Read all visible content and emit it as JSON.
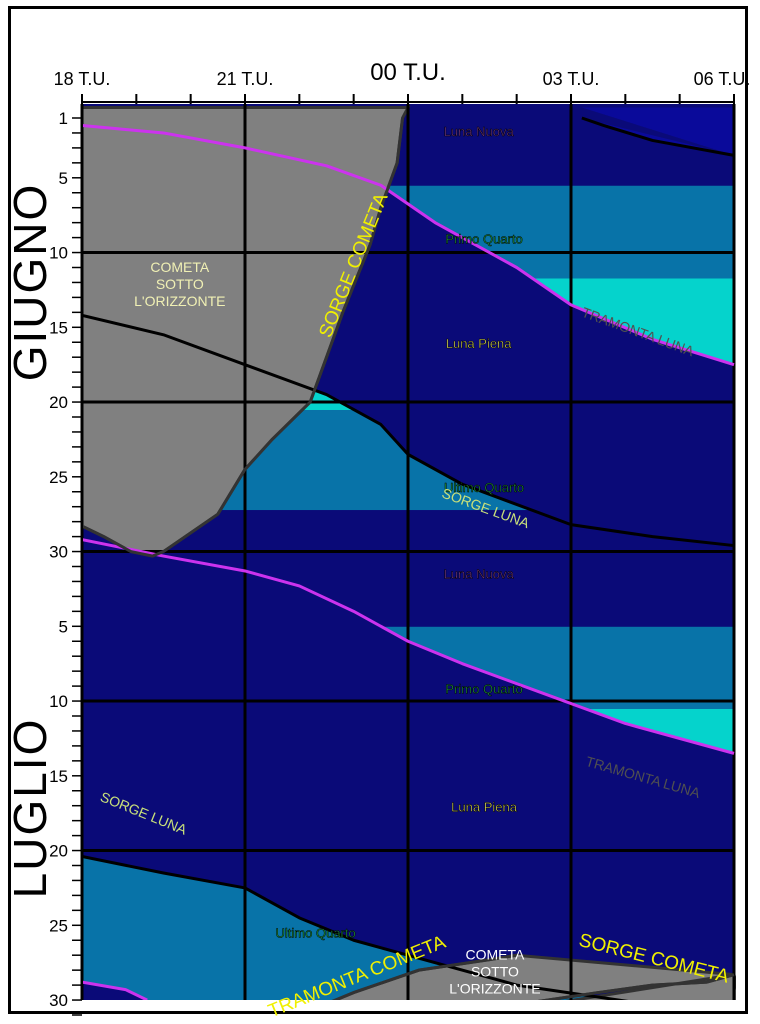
{
  "chart_data": {
    "type": "area",
    "title": "",
    "x_axis": {
      "position": "top",
      "ticks": [
        {
          "value": 18,
          "label": "18 T.U."
        },
        {
          "value": 21,
          "label": "21 T.U."
        },
        {
          "value": 24,
          "label": "00 T.U."
        },
        {
          "value": 27,
          "label": "03 T.U."
        },
        {
          "value": 30,
          "label": "06 T.U."
        }
      ],
      "range": [
        18,
        30
      ]
    },
    "y_axis": {
      "range_days": [
        1,
        61
      ],
      "ticks": [
        {
          "day": 1,
          "label": "1"
        },
        {
          "day": 5,
          "label": "5"
        },
        {
          "day": 10,
          "label": "10"
        },
        {
          "day": 15,
          "label": "15"
        },
        {
          "day": 20,
          "label": "20"
        },
        {
          "day": 25,
          "label": "25"
        },
        {
          "day": 30,
          "label": "30"
        },
        {
          "day": 35,
          "label": "5"
        },
        {
          "day": 40,
          "label": "10"
        },
        {
          "day": 45,
          "label": "15"
        },
        {
          "day": 50,
          "label": "20"
        },
        {
          "day": 55,
          "label": "25"
        },
        {
          "day": 60,
          "label": "30"
        }
      ]
    },
    "months": [
      {
        "label": "GIUGNO",
        "from_day": 1,
        "to_day": 30
      },
      {
        "label": "LUGLIO",
        "from_day": 31,
        "to_day": 61
      }
    ],
    "moon_phase_bands": [
      {
        "label": "Luna Nuova",
        "from_day": 1,
        "to_day": 6,
        "color": "#0a0a78"
      },
      {
        "label": "Primo Quarto",
        "from_day": 6,
        "to_day": 12.2,
        "color": "#0873a8"
      },
      {
        "label": "Luna Piena",
        "from_day": 12.2,
        "to_day": 21,
        "color": "#05d3cc"
      },
      {
        "label": "Ultimo Quarto",
        "from_day": 21,
        "to_day": 27.7,
        "color": "#0873a8"
      },
      {
        "label": "Luna Nuova",
        "from_day": 27.7,
        "to_day": 35.5,
        "color": "#0a0a78"
      },
      {
        "label": "Primo Quarto",
        "from_day": 35.5,
        "to_day": 41,
        "color": "#0873a8"
      },
      {
        "label": "Luna Piena",
        "from_day": 41,
        "to_day": 51,
        "color": "#05d3cc"
      },
      {
        "label": "Ultimo Quarto",
        "from_day": 51,
        "to_day": 61,
        "color": "#0873a8"
      }
    ],
    "phase_labels": [
      {
        "text": "Luna Nuova",
        "hour": 25.3,
        "day": 2.2,
        "color": "#7a3c8c"
      },
      {
        "text": "Primo Quarto",
        "hour": 25.4,
        "day": 9.4,
        "color": "#1f9e3c"
      },
      {
        "text": "Luna Piena",
        "hour": 25.3,
        "day": 16.4,
        "color": "#ecec5a"
      },
      {
        "text": "Ultimo Quarto",
        "hour": 25.4,
        "day": 26,
        "color": "#1f9e3c"
      },
      {
        "text": "Luna Nuova",
        "hour": 25.3,
        "day": 31.8,
        "color": "#7a3c8c"
      },
      {
        "text": "Primo Quarto",
        "hour": 25.4,
        "day": 39.5,
        "color": "#1f9e3c"
      },
      {
        "text": "Luna Piena",
        "hour": 25.4,
        "day": 47.4,
        "color": "#ecec5a"
      },
      {
        "text": "Ultimo Quarto",
        "hour": 22.3,
        "day": 55.8,
        "color": "#1f9e3c"
      }
    ],
    "moon_region_color": "#0a0a78",
    "comet_below_horizon_color": "#808080",
    "series": [
      {
        "name": "SORGE LUNA",
        "color": "#000000",
        "segments": [
          [
            [
              30,
              3.5
            ],
            [
              28.5,
              2.5
            ],
            [
              27.6,
              1.5
            ],
            [
              27.2,
              1
            ]
          ],
          [
            [
              18,
              14.2
            ],
            [
              19.5,
              15.5
            ],
            [
              21,
              17.5
            ],
            [
              22.5,
              19.5
            ],
            [
              23.5,
              21.5
            ],
            [
              24,
              23.5
            ],
            [
              25,
              25.5
            ],
            [
              27,
              28.2
            ],
            [
              28.5,
              29
            ],
            [
              30,
              29.6
            ]
          ],
          [
            [
              18,
              50.4
            ],
            [
              19.5,
              51.5
            ],
            [
              21,
              52.5
            ],
            [
              22,
              54.5
            ],
            [
              23,
              56
            ],
            [
              24.5,
              57.5
            ],
            [
              26,
              59
            ],
            [
              29,
              60.6
            ]
          ]
        ]
      },
      {
        "name": "TRAMONTA LUNA",
        "color": "#cc33ee",
        "segments": [
          [
            [
              18,
              1.5
            ],
            [
              19.5,
              2
            ],
            [
              21,
              3
            ],
            [
              22.5,
              4.2
            ],
            [
              23.5,
              5.5
            ],
            [
              24.5,
              8
            ],
            [
              26,
              11
            ],
            [
              27,
              13.5
            ],
            [
              28.5,
              15.8
            ],
            [
              30,
              17.5
            ]
          ],
          [
            [
              18,
              29.2
            ],
            [
              19.5,
              30.3
            ],
            [
              21,
              31.3
            ],
            [
              22,
              32.3
            ],
            [
              23,
              34
            ],
            [
              24,
              36
            ],
            [
              25,
              37.5
            ],
            [
              26.5,
              39.5
            ],
            [
              28,
              41.5
            ],
            [
              30,
              43.5
            ]
          ],
          [
            [
              18,
              58.8
            ],
            [
              18.8,
              59.3
            ],
            [
              19.2,
              60
            ]
          ]
        ]
      },
      {
        "name": "SORGE COMETA",
        "color": "#333333",
        "segments": [
          [
            [
              23.9,
              1
            ],
            [
              23.8,
              4
            ],
            [
              23.5,
              7
            ],
            [
              23.3,
              9.5
            ],
            [
              22.8,
              14
            ],
            [
              22.5,
              17
            ],
            [
              22.2,
              20
            ],
            [
              21.5,
              22.5
            ],
            [
              21,
              24.5
            ],
            [
              20.5,
              27.5
            ],
            [
              19.5,
              30
            ],
            [
              19.3,
              30.3
            ]
          ],
          [
            [
              25.5,
              60.9
            ],
            [
              26.2,
              60.2
            ],
            [
              27.5,
              59.5
            ],
            [
              28.5,
              59
            ],
            [
              29.5,
              58.8
            ],
            [
              30,
              58.3
            ]
          ]
        ]
      },
      {
        "name": "TRAMONTA COMETA",
        "color": "#333333",
        "segments": [
          [
            [
              18,
              28.3
            ],
            [
              18.4,
              29
            ],
            [
              18.9,
              30
            ],
            [
              19.3,
              30.3
            ]
          ],
          [
            [
              22,
              61
            ],
            [
              23,
              59.5
            ],
            [
              24.2,
              58
            ],
            [
              25.5,
              57.3
            ],
            [
              26,
              57
            ]
          ]
        ]
      }
    ],
    "curve_labels": [
      {
        "text": "SORGE COMETA",
        "hour": 23.1,
        "day": 11,
        "angle": -68,
        "color": "#f0f000"
      },
      {
        "text": "TRAMONTA LUNA",
        "hour": 28.2,
        "day": 15.6,
        "angle": 20,
        "color": "#505050"
      },
      {
        "text": "SORGE LUNA",
        "hour": 25.4,
        "day": 27.4,
        "angle": 20,
        "color": "#c8e07a"
      },
      {
        "text": "TRAMONTA LUNA",
        "hour": 28.3,
        "day": 45.4,
        "angle": 16,
        "color": "#505050"
      },
      {
        "text": "SORGE LUNA",
        "hour": 19.1,
        "day": 47.8,
        "angle": 22,
        "color": "#c8e07a"
      },
      {
        "text": "TRAMONTA COMETA",
        "hour": 23.1,
        "day": 58.8,
        "angle": -22,
        "color": "#f0f000"
      },
      {
        "text": "SORGE COMETA",
        "hour": 28.5,
        "day": 57.6,
        "angle": 14,
        "color": "#f0f000"
      }
    ],
    "region_labels": [
      {
        "lines": [
          "COMETA",
          "SOTTO",
          "L'ORIZZONTE"
        ],
        "hour": 19.8,
        "day": 11.3,
        "color": "#f0f0b4"
      },
      {
        "lines": [
          "COMETA",
          "SOTTO",
          "L'ORIZZONTE"
        ],
        "hour": 25.6,
        "day": 57.3,
        "color": "#ffffff"
      }
    ]
  }
}
